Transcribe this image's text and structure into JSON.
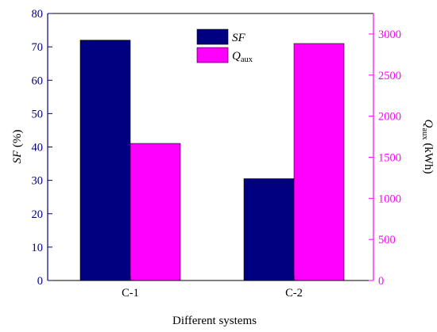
{
  "chart_data": {
    "type": "bar",
    "categories": [
      "C-1",
      "C-2"
    ],
    "xlabel": "Different systems",
    "ylabel_left": {
      "main": "SF",
      "suffix": " (%)"
    },
    "ylabel_right": {
      "main": "Q",
      "sub": "aux",
      "suffix": " (kWh)"
    },
    "ylim_left": [
      0,
      80
    ],
    "ylim_right": [
      0,
      3250
    ],
    "yticks_left": [
      0,
      10,
      20,
      30,
      40,
      50,
      60,
      70,
      80
    ],
    "yticks_right": [
      0,
      500,
      1000,
      1500,
      2000,
      2500,
      3000
    ],
    "series": [
      {
        "name": "SF",
        "legend": {
          "main": "SF",
          "sub": ""
        },
        "axis": "left",
        "values": [
          72,
          30.5
        ],
        "color": "#000080"
      },
      {
        "name": "Qaux",
        "legend": {
          "main": "Q",
          "sub": "aux"
        },
        "axis": "right",
        "values": [
          1668,
          2884
        ],
        "color": "#ff00ff"
      }
    ],
    "left_axis_color": "#000080",
    "right_axis_color": "#ff00ff",
    "grid": false,
    "legend_position": "top-right"
  }
}
